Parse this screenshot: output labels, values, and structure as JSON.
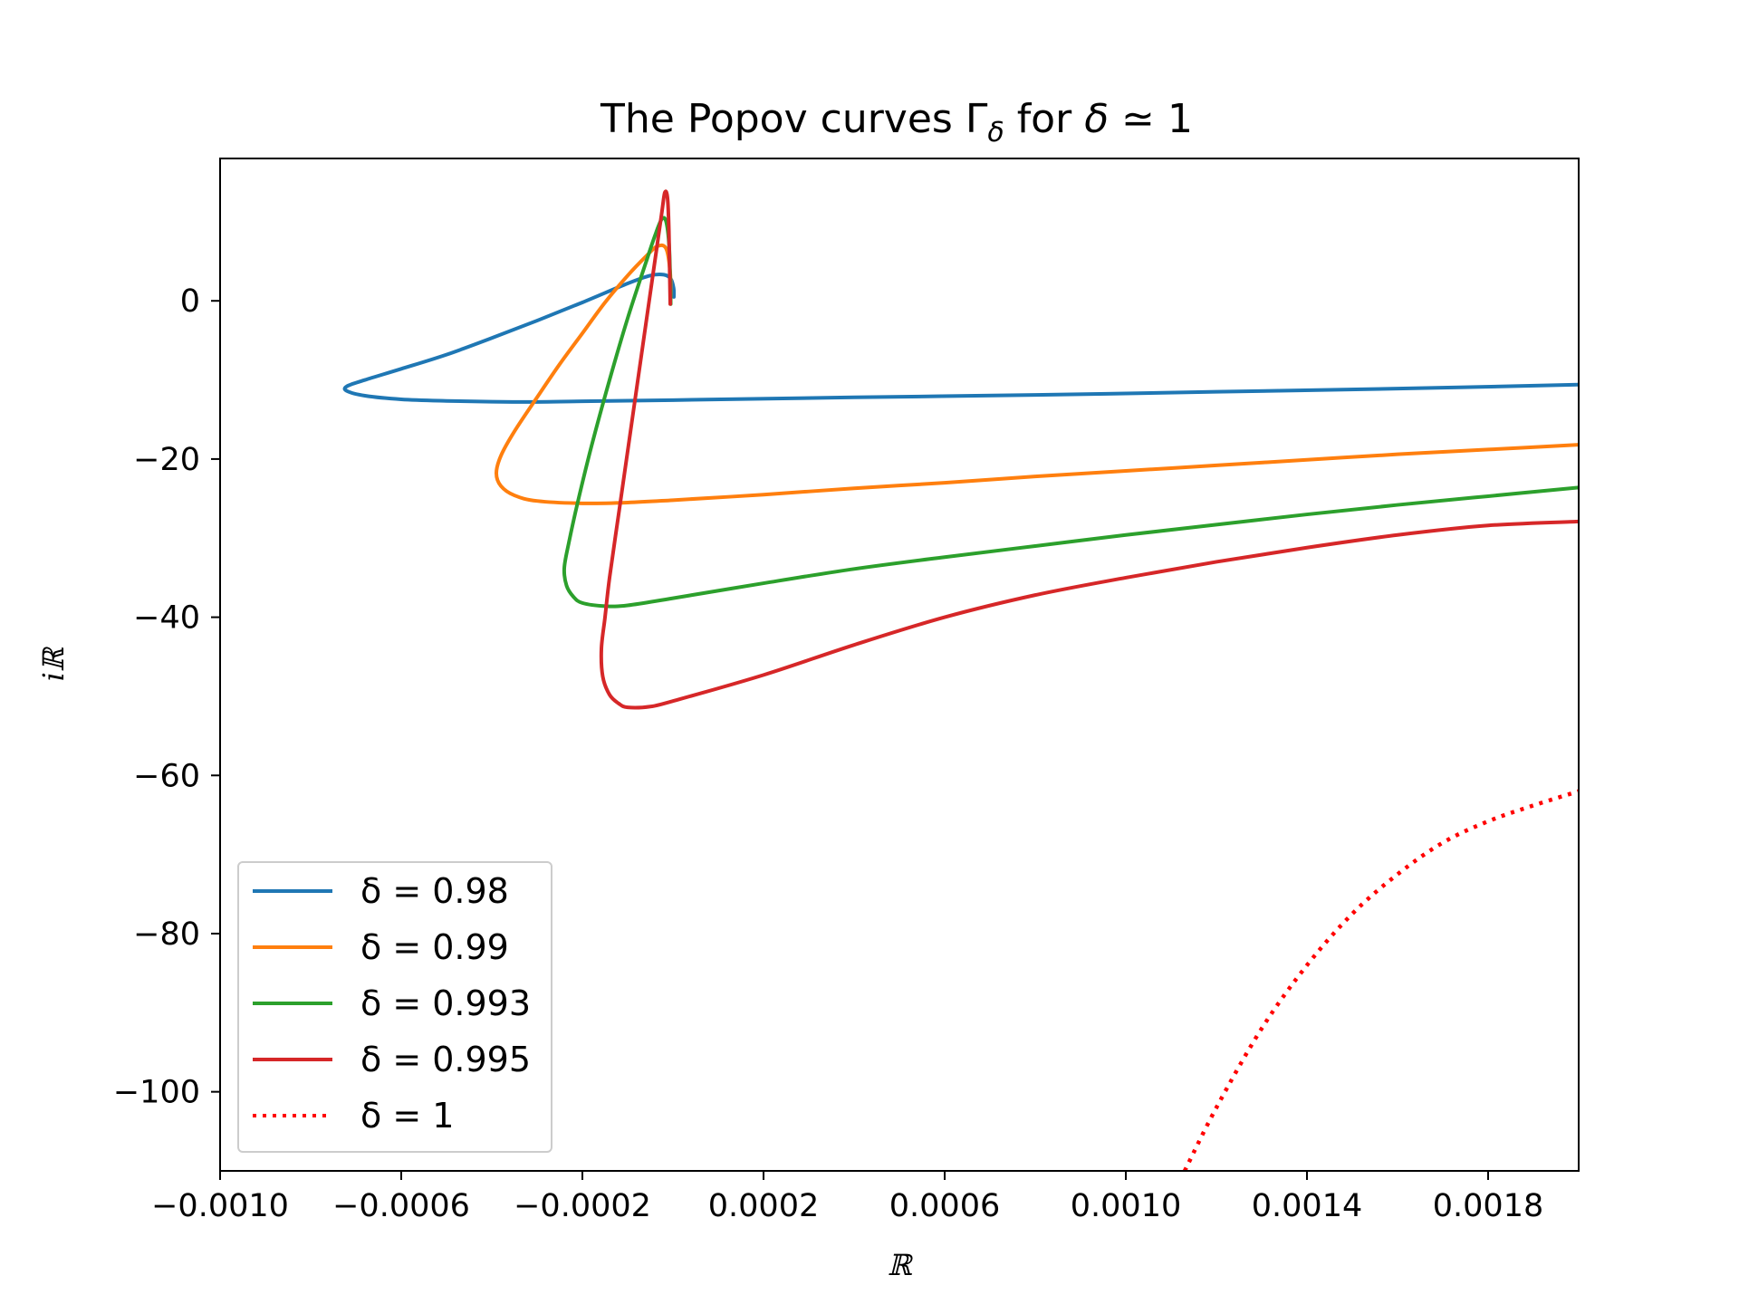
{
  "chart_data": {
    "type": "line",
    "title": {
      "prefix": "The Popov curves ",
      "gamma": "Γ",
      "gamma_sub": "δ",
      "middle": " for ",
      "delta": "δ",
      "suffix": " ≃ 1"
    },
    "xlabel": "ℝ",
    "ylabel": "iℝ",
    "xlim": [
      -0.001,
      0.002
    ],
    "ylim": [
      -110,
      18
    ],
    "xticks": [
      -0.001,
      -0.0006,
      -0.0002,
      0.0002,
      0.0006,
      0.001,
      0.0014,
      0.0018
    ],
    "xtick_labels": [
      "−0.0010",
      "−0.0006",
      "−0.0002",
      "0.0002",
      "0.0006",
      "0.0010",
      "0.0014",
      "0.0018"
    ],
    "yticks": [
      0,
      -20,
      -40,
      -60,
      -80,
      -100
    ],
    "ytick_labels": [
      "0",
      "−20",
      "−40",
      "−60",
      "−80",
      "−100"
    ],
    "grid": false,
    "legend_position": "lower-left",
    "series": [
      {
        "name": "δ = 0.98",
        "color": "#1f77b4",
        "style": "solid",
        "points": [
          [
            2e-06,
            0.5
          ],
          [
            1.5e-06,
            1.6
          ],
          [
            -5e-06,
            2.8
          ],
          [
            -2e-05,
            3.3
          ],
          [
            -5e-05,
            3.2
          ],
          [
            -0.0001,
            2.2
          ],
          [
            -0.0002,
            -0.2
          ],
          [
            -0.0003,
            -2.5
          ],
          [
            -0.0004,
            -4.7
          ],
          [
            -0.0005,
            -6.8
          ],
          [
            -0.0006,
            -8.6
          ],
          [
            -0.00068,
            -10.0
          ],
          [
            -0.00072,
            -10.8
          ],
          [
            -0.00072,
            -11.4
          ],
          [
            -0.00068,
            -12.0
          ],
          [
            -0.0006,
            -12.45
          ],
          [
            -0.0005,
            -12.65
          ],
          [
            -0.0004,
            -12.75
          ],
          [
            -0.0003,
            -12.78
          ],
          [
            -0.0002,
            -12.7
          ],
          [
            0.0,
            -12.55
          ],
          [
            0.0004,
            -12.2
          ],
          [
            0.0008,
            -11.9
          ],
          [
            0.0012,
            -11.5
          ],
          [
            0.0016,
            -11.1
          ],
          [
            0.002,
            -10.6
          ]
        ]
      },
      {
        "name": "δ = 0.99",
        "color": "#ff7f0e",
        "style": "solid",
        "points": [
          [
            -5e-06,
            -0.3
          ],
          [
            -6e-06,
            3.5
          ],
          [
            -1.5e-05,
            6.6
          ],
          [
            -3.5e-05,
            6.9
          ],
          [
            -6e-05,
            5.6
          ],
          [
            -0.0001,
            3.2
          ],
          [
            -0.00015,
            -0.2
          ],
          [
            -0.0002,
            -4.1
          ],
          [
            -0.00025,
            -8.0
          ],
          [
            -0.0003,
            -12.2
          ],
          [
            -0.00035,
            -16.5
          ],
          [
            -0.00038,
            -19.6
          ],
          [
            -0.00039,
            -21.8
          ],
          [
            -0.00038,
            -23.4
          ],
          [
            -0.00035,
            -24.6
          ],
          [
            -0.0003,
            -25.3
          ],
          [
            -0.0002,
            -25.6
          ],
          [
            -0.0001,
            -25.5
          ],
          [
            0.0,
            -25.2
          ],
          [
            0.0002,
            -24.5
          ],
          [
            0.0004,
            -23.7
          ],
          [
            0.0006,
            -23.0
          ],
          [
            0.0008,
            -22.2
          ],
          [
            0.001,
            -21.5
          ],
          [
            0.0012,
            -20.8
          ],
          [
            0.0014,
            -20.1
          ],
          [
            0.0016,
            -19.4
          ],
          [
            0.0018,
            -18.8
          ],
          [
            0.002,
            -18.2
          ]
        ]
      },
      {
        "name": "δ = 0.993",
        "color": "#2ca02c",
        "style": "solid",
        "points": [
          [
            -5e-06,
            -0.4
          ],
          [
            -8e-06,
            6.5
          ],
          [
            -1.5e-05,
            10.0
          ],
          [
            -2.5e-05,
            10.3
          ],
          [
            -4e-05,
            8.2
          ],
          [
            -6e-05,
            4.8
          ],
          [
            -0.0001,
            -2.2
          ],
          [
            -0.00014,
            -10.0
          ],
          [
            -0.00018,
            -18.4
          ],
          [
            -0.00021,
            -25.4
          ],
          [
            -0.00023,
            -30.6
          ],
          [
            -0.00024,
            -33.8
          ],
          [
            -0.000235,
            -36.0
          ],
          [
            -0.00022,
            -37.4
          ],
          [
            -0.0002,
            -38.2
          ],
          [
            -0.00015,
            -38.6
          ],
          [
            -0.0001,
            -38.5
          ],
          [
            0.0,
            -37.6
          ],
          [
            0.0002,
            -35.7
          ],
          [
            0.0004,
            -33.9
          ],
          [
            0.0006,
            -32.4
          ],
          [
            0.0008,
            -31.0
          ],
          [
            0.001,
            -29.6
          ],
          [
            0.0012,
            -28.3
          ],
          [
            0.0014,
            -27.0
          ],
          [
            0.0016,
            -25.8
          ],
          [
            0.0018,
            -24.7
          ],
          [
            0.002,
            -23.6
          ]
        ]
      },
      {
        "name": "δ = 0.995",
        "color": "#d62728",
        "style": "solid",
        "points": [
          [
            -6e-06,
            -0.4
          ],
          [
            -9e-06,
            9.0
          ],
          [
            -1.2e-05,
            13.0
          ],
          [
            -1.8e-05,
            13.7
          ],
          [
            -2.5e-05,
            11.0
          ],
          [
            -4e-05,
            5.0
          ],
          [
            -6e-05,
            -3.0
          ],
          [
            -8e-05,
            -11.0
          ],
          [
            -0.0001,
            -19.0
          ],
          [
            -0.00012,
            -27.0
          ],
          [
            -0.00014,
            -35.0
          ],
          [
            -0.00015,
            -40.0
          ],
          [
            -0.000158,
            -44.0
          ],
          [
            -0.000155,
            -47.5
          ],
          [
            -0.00014,
            -49.8
          ],
          [
            -0.00012,
            -50.9
          ],
          [
            -0.0001,
            -51.4
          ],
          [
            -5e-05,
            -51.3
          ],
          [
            0.0,
            -50.6
          ],
          [
            0.0002,
            -47.3
          ],
          [
            0.0004,
            -43.5
          ],
          [
            0.0006,
            -40.0
          ],
          [
            0.0008,
            -37.2
          ],
          [
            0.001,
            -35.0
          ],
          [
            0.0012,
            -33.0
          ],
          [
            0.0014,
            -31.2
          ],
          [
            0.0016,
            -29.6
          ],
          [
            0.0018,
            -28.4
          ],
          [
            0.002,
            -27.9
          ]
        ]
      },
      {
        "name": "δ = 1",
        "color": "#ff0000",
        "style": "dotted",
        "points": [
          [
            0.00113,
            -110.0
          ],
          [
            0.0012,
            -102.0
          ],
          [
            0.0013,
            -92.0
          ],
          [
            0.0014,
            -84.0
          ],
          [
            0.0015,
            -77.5
          ],
          [
            0.0016,
            -72.5
          ],
          [
            0.0017,
            -68.5
          ],
          [
            0.0018,
            -65.8
          ],
          [
            0.0019,
            -63.8
          ],
          [
            0.002,
            -62.0
          ]
        ]
      }
    ]
  }
}
